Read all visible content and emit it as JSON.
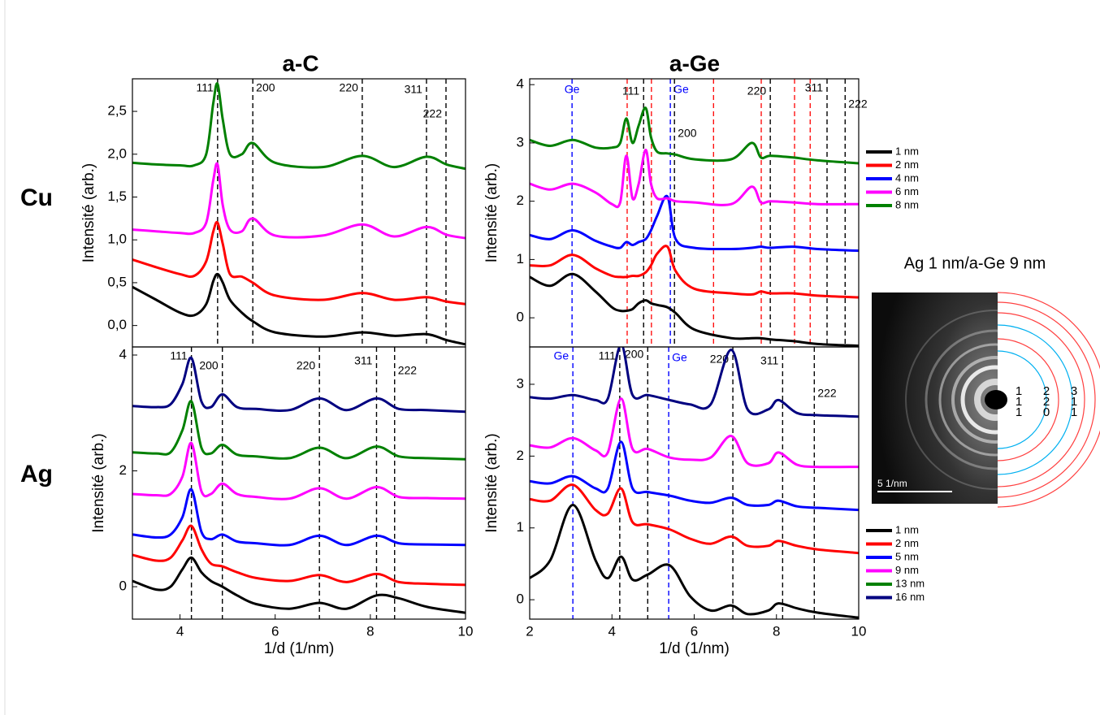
{
  "column_titles": [
    "a-C",
    "a-Ge"
  ],
  "row_labels": [
    "Cu",
    "Ag"
  ],
  "inset": {
    "title": "Ag 1 nm/a-Ge 9 nm",
    "scale_bar": "5 1/nm",
    "ring_labels": [
      [
        "1",
        "1",
        "1"
      ],
      [
        "2",
        "2",
        "0"
      ],
      [
        "3",
        "1",
        "1"
      ]
    ]
  },
  "chart_data": [
    {
      "type": "line",
      "ylabel": "Intensité (arb.)",
      "xlim": [
        3,
        10
      ],
      "ylim": [
        -0.25,
        2.88
      ],
      "yticks": [
        {
          "value": 0,
          "label": "0,0"
        },
        {
          "value": 0.5,
          "label": "0,5"
        },
        {
          "value": 1,
          "label": "1,0"
        },
        {
          "value": 1.5,
          "label": "1,5"
        },
        {
          "value": 2,
          "label": "2,0"
        },
        {
          "value": 2.5,
          "label": "2,5"
        }
      ],
      "reference_lines": [
        {
          "x": 4.79,
          "label": "111",
          "color": "#000000"
        },
        {
          "x": 5.53,
          "label": "200",
          "color": "#000000"
        },
        {
          "x": 7.83,
          "label": "220",
          "color": "#000000"
        },
        {
          "x": 9.18,
          "label": "311",
          "color": "#000000"
        },
        {
          "x": 9.59,
          "label": "222",
          "color": "#000000"
        }
      ],
      "x": [
        3,
        3.5,
        4,
        4.3,
        4.55,
        4.7,
        4.79,
        4.9,
        5.05,
        5.3,
        5.53,
        6,
        7,
        7.83,
        8.5,
        9.18,
        9.6,
        10
      ],
      "series": [
        {
          "name": "1 nm",
          "color": "#000000",
          "values": [
            0.45,
            0.3,
            0.15,
            0.12,
            0.25,
            0.52,
            0.6,
            0.5,
            0.3,
            0.15,
            0.05,
            -0.08,
            -0.13,
            -0.08,
            -0.12,
            -0.1,
            -0.17,
            -0.22
          ]
        },
        {
          "name": "2 nm",
          "color": "#ff0000",
          "values": [
            0.77,
            0.68,
            0.6,
            0.58,
            0.75,
            1.1,
            1.2,
            0.95,
            0.6,
            0.57,
            0.5,
            0.35,
            0.3,
            0.38,
            0.3,
            0.33,
            0.28,
            0.25
          ]
        },
        {
          "name": "6 nm",
          "color": "#ff00ff",
          "values": [
            1.12,
            1.1,
            1.08,
            1.08,
            1.2,
            1.7,
            1.88,
            1.4,
            1.12,
            1.1,
            1.25,
            1.05,
            1.05,
            1.18,
            1.04,
            1.15,
            1.06,
            1.02
          ]
        },
        {
          "name": "8 nm",
          "color": "#008000",
          "values": [
            1.9,
            1.88,
            1.87,
            1.87,
            2.0,
            2.6,
            2.82,
            2.4,
            2.0,
            2.0,
            2.13,
            1.9,
            1.85,
            1.98,
            1.85,
            1.97,
            1.88,
            1.83
          ]
        }
      ]
    },
    {
      "type": "line",
      "ylabel": "Intensité (arb.)",
      "xlim": [
        2,
        10
      ],
      "ylim": [
        -0.5,
        4.1
      ],
      "yticks": [
        0,
        1,
        2,
        3,
        4
      ],
      "legend": "right",
      "reference_lines": [
        {
          "x": 3.03,
          "label": "Ge",
          "color": "#0000ff"
        },
        {
          "x": 5.42,
          "label": "Ge",
          "color": "#0000ff"
        },
        {
          "x": 4.37,
          "color": "#ff0000"
        },
        {
          "x": 4.96,
          "color": "#ff0000"
        },
        {
          "x": 6.47,
          "color": "#ff0000"
        },
        {
          "x": 7.63,
          "color": "#ff0000"
        },
        {
          "x": 8.44,
          "color": "#ff0000"
        },
        {
          "x": 8.82,
          "color": "#ff0000"
        },
        {
          "x": 4.77,
          "label": "111",
          "color": "#000000"
        },
        {
          "x": 5.52,
          "label": "200",
          "color": "#000000"
        },
        {
          "x": 7.85,
          "label": "220",
          "color": "#000000"
        },
        {
          "x": 9.23,
          "label": "311",
          "color": "#000000"
        },
        {
          "x": 9.67,
          "label": "222",
          "color": "#000000"
        }
      ],
      "x": [
        2,
        2.5,
        3.05,
        3.6,
        4.0,
        4.2,
        4.35,
        4.5,
        4.65,
        4.82,
        4.95,
        5.1,
        5.35,
        5.55,
        6,
        6.9,
        7.4,
        7.62,
        7.85,
        8.4,
        9,
        10
      ],
      "series": [
        {
          "name": "1 nm",
          "color": "#000000",
          "values": [
            0.7,
            0.55,
            0.75,
            0.45,
            0.18,
            0.12,
            0.12,
            0.15,
            0.25,
            0.3,
            0.25,
            0.22,
            0.18,
            0.08,
            -0.2,
            -0.35,
            -0.35,
            -0.35,
            -0.37,
            -0.4,
            -0.45,
            -0.48
          ]
        },
        {
          "name": "2 nm",
          "color": "#ff0000",
          "values": [
            0.9,
            0.9,
            1.08,
            0.85,
            0.72,
            0.7,
            0.7,
            0.72,
            0.72,
            0.78,
            0.9,
            1.1,
            1.22,
            0.8,
            0.5,
            0.42,
            0.4,
            0.45,
            0.42,
            0.42,
            0.38,
            0.35
          ]
        },
        {
          "name": "4 nm",
          "color": "#0000ff",
          "values": [
            1.42,
            1.35,
            1.5,
            1.32,
            1.22,
            1.2,
            1.3,
            1.25,
            1.3,
            1.35,
            1.5,
            1.75,
            2.08,
            1.35,
            1.2,
            1.18,
            1.2,
            1.22,
            1.2,
            1.22,
            1.18,
            1.15
          ]
        },
        {
          "name": "6 nm",
          "color": "#ff00ff",
          "values": [
            2.3,
            2.2,
            2.3,
            2.15,
            1.95,
            1.98,
            2.78,
            2.05,
            2.3,
            2.88,
            2.3,
            2.05,
            2.05,
            2.0,
            1.98,
            1.95,
            2.25,
            1.98,
            2.0,
            1.98,
            1.95,
            1.95
          ]
        },
        {
          "name": "8 nm",
          "color": "#008000",
          "values": [
            3.05,
            2.95,
            3.05,
            2.92,
            2.92,
            3.0,
            3.42,
            3.0,
            3.3,
            3.6,
            3.1,
            2.85,
            2.82,
            2.8,
            2.72,
            2.72,
            3.0,
            2.75,
            2.78,
            2.75,
            2.7,
            2.65
          ]
        }
      ]
    },
    {
      "type": "line",
      "ylabel": "Intensité (arb.)",
      "xlabel": "1/d (1/nm)",
      "xlim": [
        3,
        10
      ],
      "xticks": [
        4,
        6,
        8,
        10
      ],
      "ylim": [
        -0.56,
        4.14
      ],
      "yticks": [
        0,
        2,
        4
      ],
      "legend": "right",
      "reference_lines": [
        {
          "x": 4.24,
          "label": "111",
          "color": "#000000"
        },
        {
          "x": 4.89,
          "label": "200",
          "color": "#000000"
        },
        {
          "x": 6.93,
          "label": "220",
          "color": "#000000"
        },
        {
          "x": 8.13,
          "label": "311",
          "color": "#000000"
        },
        {
          "x": 8.51,
          "label": "222",
          "color": "#000000"
        }
      ],
      "x": [
        3,
        3.5,
        3.8,
        4.05,
        4.24,
        4.45,
        4.65,
        4.89,
        5.2,
        5.6,
        6.3,
        6.93,
        7.5,
        8.13,
        8.6,
        9.2,
        10
      ],
      "series": [
        {
          "name": "1 nm",
          "color": "#000000",
          "values": [
            0.1,
            -0.05,
            0.0,
            0.3,
            0.5,
            0.25,
            0.1,
            0.0,
            -0.15,
            -0.3,
            -0.38,
            -0.28,
            -0.38,
            -0.15,
            -0.2,
            -0.35,
            -0.45
          ]
        },
        {
          "name": "2 nm",
          "color": "#ff0000",
          "values": [
            0.55,
            0.45,
            0.5,
            0.8,
            1.05,
            0.65,
            0.4,
            0.35,
            0.25,
            0.15,
            0.1,
            0.2,
            0.08,
            0.22,
            0.08,
            0.05,
            0.03
          ]
        },
        {
          "name": "5 nm",
          "color": "#0000ff",
          "values": [
            0.9,
            0.85,
            0.9,
            1.2,
            1.68,
            0.95,
            0.82,
            0.9,
            0.78,
            0.75,
            0.72,
            0.88,
            0.72,
            0.88,
            0.75,
            0.73,
            0.72
          ]
        },
        {
          "name": "9 nm",
          "color": "#ff00ff",
          "values": [
            1.6,
            1.58,
            1.6,
            1.9,
            2.48,
            1.65,
            1.6,
            1.78,
            1.6,
            1.55,
            1.52,
            1.7,
            1.52,
            1.72,
            1.55,
            1.53,
            1.52
          ]
        },
        {
          "name": "13 nm",
          "color": "#008000",
          "values": [
            2.32,
            2.3,
            2.32,
            2.7,
            3.2,
            2.4,
            2.3,
            2.45,
            2.28,
            2.25,
            2.22,
            2.4,
            2.22,
            2.42,
            2.25,
            2.22,
            2.2
          ]
        },
        {
          "name": "16 nm",
          "color": "#000080",
          "values": [
            3.12,
            3.1,
            3.15,
            3.5,
            3.95,
            3.2,
            3.1,
            3.32,
            3.1,
            3.07,
            3.05,
            3.25,
            3.05,
            3.25,
            3.07,
            3.05,
            3.02
          ]
        }
      ]
    },
    {
      "type": "line",
      "ylabel": "Intensité (arb.)",
      "xlabel": "1/d (1/nm)",
      "xlim": [
        2,
        10
      ],
      "xticks": [
        2,
        4,
        6,
        8,
        10
      ],
      "ylim": [
        -0.27,
        3.52
      ],
      "yticks": [
        0,
        1,
        2,
        3
      ],
      "reference_lines": [
        {
          "x": 3.05,
          "label": "Ge",
          "color": "#0000ff"
        },
        {
          "x": 5.38,
          "label": "Ge",
          "color": "#0000ff"
        },
        {
          "x": 4.19,
          "label": "111",
          "color": "#000000"
        },
        {
          "x": 4.87,
          "label": "200",
          "color": "#000000"
        },
        {
          "x": 6.94,
          "label": "220",
          "color": "#000000"
        },
        {
          "x": 8.15,
          "label": "311",
          "color": "#000000"
        },
        {
          "x": 8.92,
          "label": "222",
          "color": "#000000"
        }
      ],
      "x": [
        2,
        2.5,
        3.05,
        3.6,
        3.9,
        4.22,
        4.5,
        4.87,
        5.4,
        5.9,
        6.4,
        6.9,
        7.3,
        7.8,
        8.05,
        8.5,
        9,
        10
      ],
      "series": [
        {
          "name": "1 nm",
          "color": "#000000",
          "values": [
            0.3,
            0.55,
            1.32,
            0.55,
            0.3,
            0.6,
            0.28,
            0.35,
            0.48,
            0.05,
            -0.15,
            -0.08,
            -0.2,
            -0.15,
            -0.05,
            -0.12,
            -0.18,
            -0.25
          ]
        },
        {
          "name": "2 nm",
          "color": "#ff0000",
          "values": [
            1.4,
            1.38,
            1.6,
            1.25,
            1.2,
            1.55,
            1.08,
            1.05,
            0.98,
            0.85,
            0.78,
            0.88,
            0.75,
            0.75,
            0.82,
            0.75,
            0.7,
            0.65
          ]
        },
        {
          "name": "5 nm",
          "color": "#0000ff",
          "values": [
            1.65,
            1.62,
            1.72,
            1.55,
            1.55,
            2.2,
            1.55,
            1.5,
            1.45,
            1.38,
            1.35,
            1.42,
            1.32,
            1.32,
            1.38,
            1.3,
            1.28,
            1.25
          ]
        },
        {
          "name": "9 nm",
          "color": "#ff00ff",
          "values": [
            2.15,
            2.12,
            2.25,
            2.08,
            2.05,
            2.8,
            2.1,
            2.1,
            1.98,
            1.95,
            1.98,
            2.28,
            1.9,
            1.9,
            2.05,
            1.88,
            1.85,
            1.85
          ]
        },
        {
          "name": "16 nm",
          "color": "#000080",
          "values": [
            2.82,
            2.8,
            2.85,
            2.78,
            2.8,
            3.55,
            2.85,
            2.85,
            2.78,
            2.72,
            2.72,
            3.48,
            2.65,
            2.65,
            2.78,
            2.6,
            2.57,
            2.55
          ]
        }
      ]
    }
  ]
}
